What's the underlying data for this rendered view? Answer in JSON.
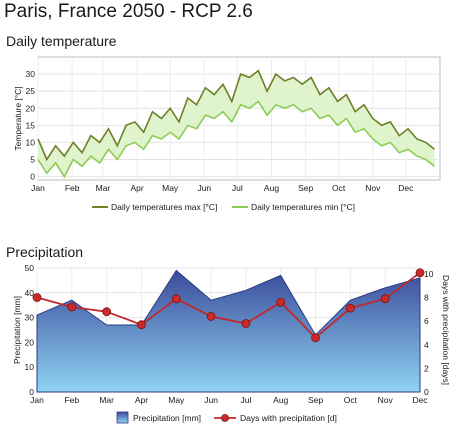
{
  "title": "Paris, France  2050 - RCP 2.6",
  "chart_data": [
    {
      "type": "line",
      "title": "Daily temperature",
      "ylabel": "Temperature [°C]",
      "xlabel": "",
      "ylim": [
        -1,
        35
      ],
      "yticks": [
        0,
        5,
        10,
        15,
        20,
        25,
        30
      ],
      "xticks": [
        "Jan",
        "Feb",
        "Mar",
        "Apr",
        "May",
        "Jun",
        "Jul",
        "Aug",
        "Sep",
        "Oct",
        "Nov",
        "Dec"
      ],
      "grid": true,
      "legend_position": "bottom",
      "colors": {
        "max": "#6e7f25",
        "min": "#8ccc55",
        "band": "#dff4cc"
      },
      "series": [
        {
          "name": "Daily temperatures max [°C]",
          "x_days": [
            0,
            8,
            16,
            24,
            32,
            40,
            48,
            56,
            64,
            72,
            80,
            88,
            96,
            104,
            112,
            120,
            128,
            136,
            144,
            152,
            160,
            168,
            176,
            184,
            192,
            200,
            208,
            216,
            224,
            232,
            240,
            248,
            256,
            264,
            272,
            280,
            288,
            296,
            304,
            312,
            320,
            328,
            336,
            344,
            352,
            360
          ],
          "values": [
            11,
            5,
            9,
            6,
            10,
            7,
            12,
            10,
            14,
            9,
            15,
            16,
            13,
            19,
            17,
            20,
            16,
            23,
            21,
            26,
            24,
            27,
            22,
            30,
            29,
            31,
            25,
            30,
            28,
            29,
            27,
            29,
            24,
            26,
            22,
            24,
            19,
            21,
            17,
            15,
            16,
            12,
            14,
            11,
            10,
            8
          ]
        },
        {
          "name": "Daily temperatures min [°C]",
          "x_days": [
            0,
            8,
            16,
            24,
            32,
            40,
            48,
            56,
            64,
            72,
            80,
            88,
            96,
            104,
            112,
            120,
            128,
            136,
            144,
            152,
            160,
            168,
            176,
            184,
            192,
            200,
            208,
            216,
            224,
            232,
            240,
            248,
            256,
            264,
            272,
            280,
            288,
            296,
            304,
            312,
            320,
            328,
            336,
            344,
            352,
            360
          ],
          "values": [
            5,
            1,
            4,
            0,
            5,
            3,
            6,
            4,
            8,
            5,
            9,
            10,
            8,
            12,
            11,
            13,
            11,
            15,
            14,
            18,
            17,
            19,
            16,
            21,
            20,
            22,
            18,
            21,
            20,
            21,
            19,
            20,
            17,
            18,
            15,
            17,
            13,
            14,
            11,
            9,
            10,
            7,
            8,
            6,
            5,
            3
          ]
        }
      ]
    },
    {
      "type": "area",
      "title": "Precipitation",
      "ylabel_left": "Precipitation [mm]",
      "ylabel_right": "Days with precipitation [days]",
      "ylim_left": [
        0,
        50
      ],
      "ylim_right": [
        0,
        10.5
      ],
      "yticks_left": [
        0,
        10,
        20,
        30,
        40,
        50
      ],
      "yticks_right": [
        0,
        2,
        4,
        6,
        8,
        10
      ],
      "categories": [
        "Jan",
        "Feb",
        "Mar",
        "Apr",
        "May",
        "Jun",
        "Jul",
        "Aug",
        "Sep",
        "Oct",
        "Nov",
        "Dec"
      ],
      "grid": true,
      "legend_position": "bottom",
      "colors": {
        "area_top": "#3b4b9c",
        "area_bottom": "#8fd4f2",
        "line": "#c0282c",
        "marker": "#cc2a2a"
      },
      "series": [
        {
          "name": "Precipitation [mm]",
          "axis": "left",
          "values": [
            31,
            37,
            27,
            27,
            49,
            37,
            41,
            47,
            23,
            37,
            42,
            46
          ]
        },
        {
          "name": "Days with precipitation [d]",
          "axis": "right",
          "values": [
            8.0,
            7.2,
            6.8,
            5.7,
            7.9,
            6.4,
            5.8,
            7.6,
            4.6,
            7.1,
            7.9,
            10.1
          ]
        }
      ]
    }
  ]
}
